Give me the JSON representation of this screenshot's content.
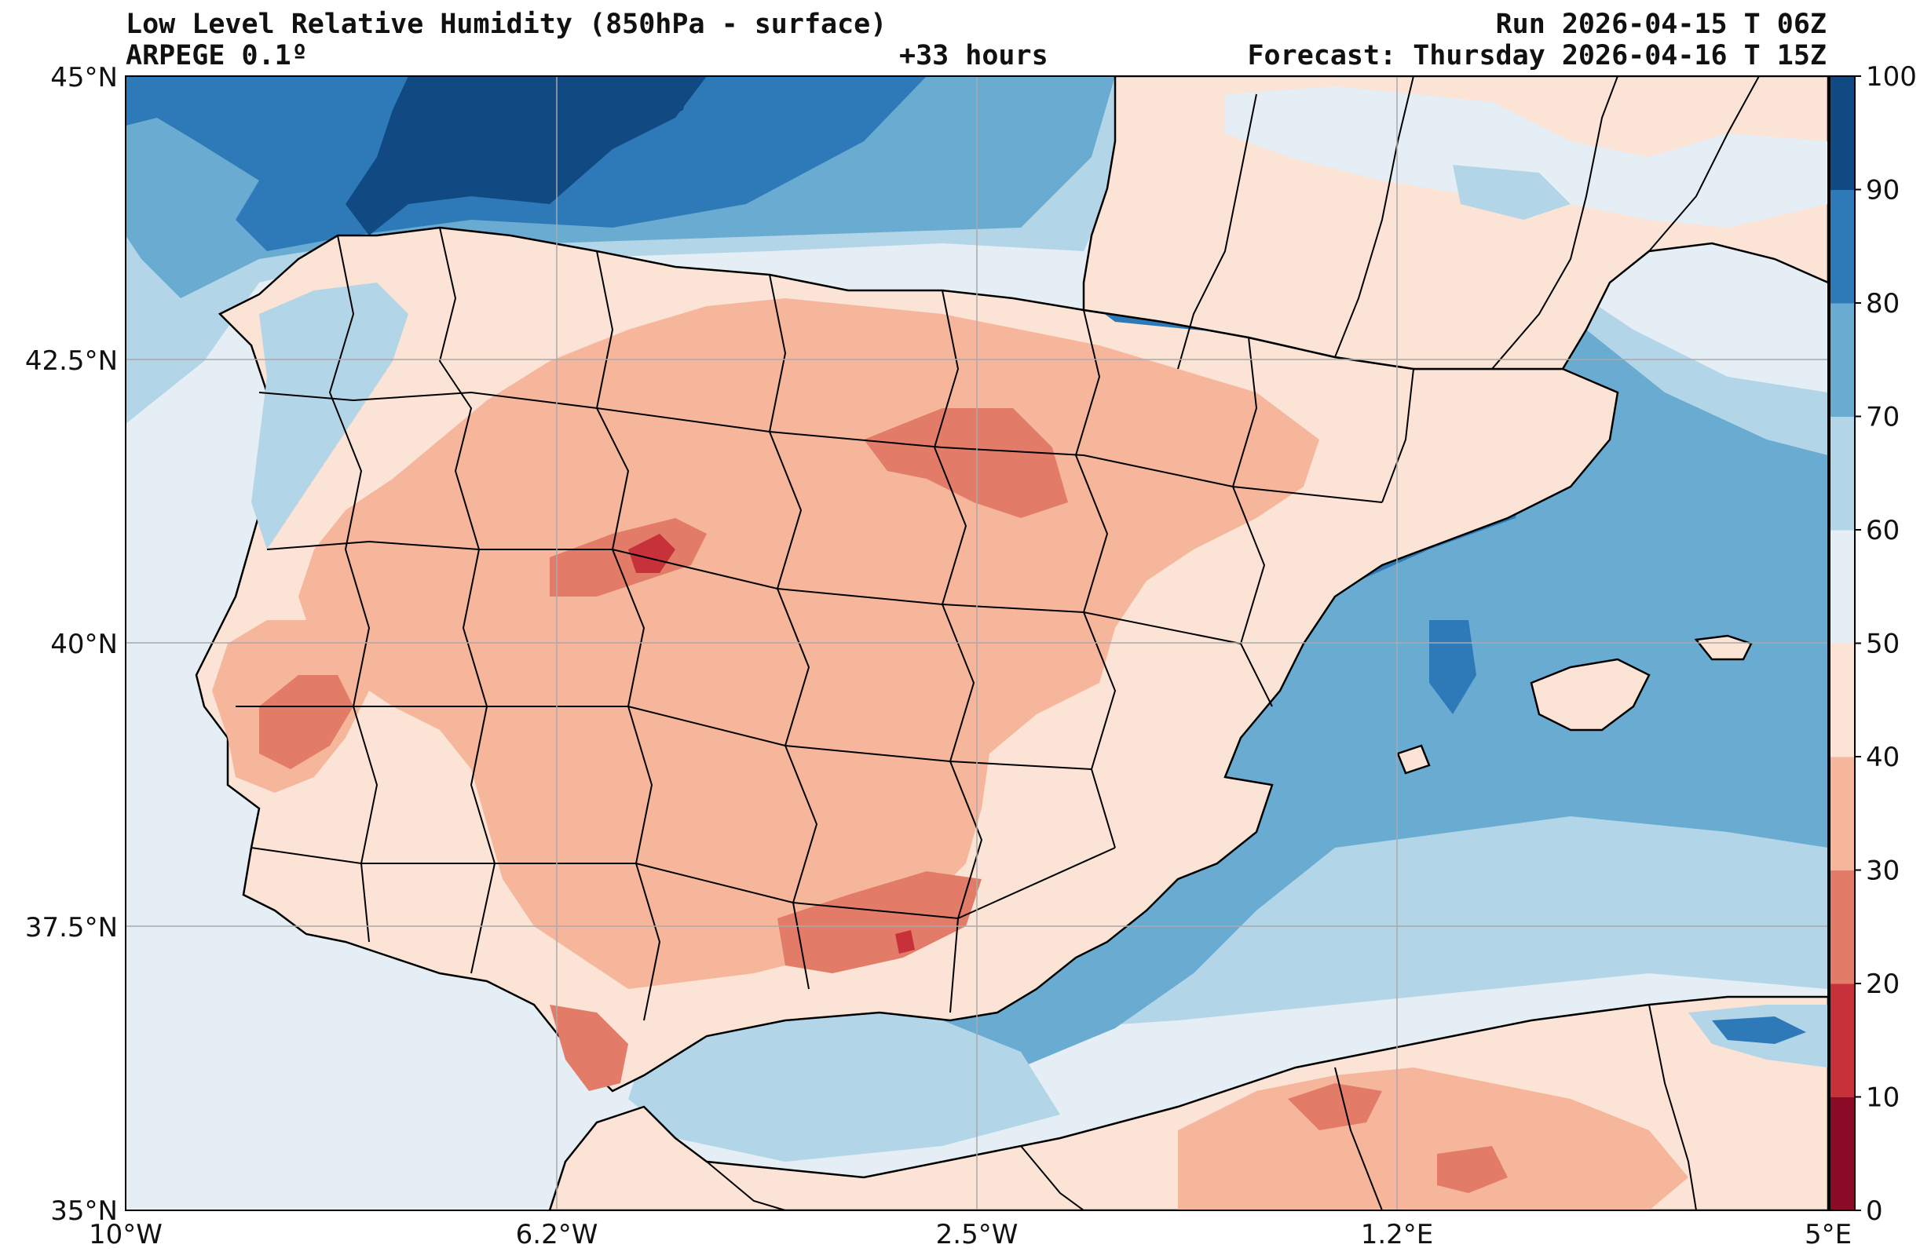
{
  "header": {
    "title": "Low Level Relative Humidity (850hPa - surface)",
    "model": "ARPEGE 0.1º",
    "lead": "+33 hours",
    "run": "Run 2026-04-15 T 06Z",
    "forecast": "Forecast: Thursday 2026-04-16 T 15Z"
  },
  "axes": {
    "x_ticks": [
      "10°W",
      "6.2°W",
      "2.5°W",
      "1.2°E",
      "5°E"
    ],
    "y_ticks": [
      "45°N",
      "42.5°N",
      "40°N",
      "37.5°N",
      "35°N"
    ]
  },
  "colorbar": {
    "ticks": [
      "0",
      "10",
      "20",
      "30",
      "40",
      "50",
      "60",
      "70",
      "80",
      "90",
      "100"
    ],
    "colors": [
      "#8b0a25",
      "#c7323a",
      "#e27c69",
      "#f6b69b",
      "#fbe3d6",
      "#e5eef5",
      "#b3d5e8",
      "#6aacd1",
      "#2e79b7",
      "#114a82"
    ]
  },
  "map": {
    "extent": {
      "lon_min": -10,
      "lon_max": 5,
      "lat_min": 35,
      "lat_max": 45
    },
    "land_base_color": "#f6b69b",
    "sea_colors": [
      "#e5eef5",
      "#b3d5e8",
      "#6aacd1",
      "#2e79b7",
      "#114a82"
    ]
  }
}
